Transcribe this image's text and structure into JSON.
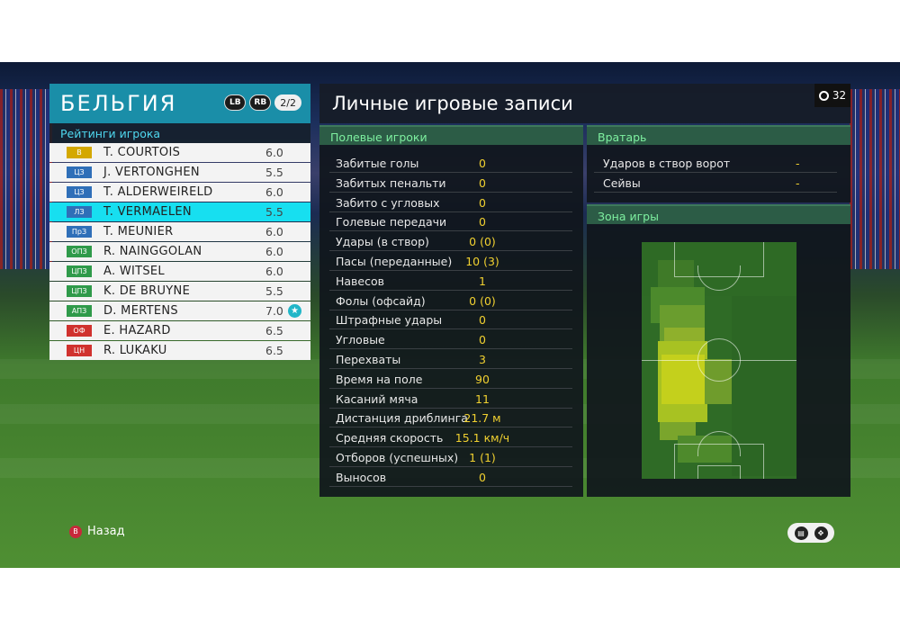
{
  "team": {
    "name": "БЕЛЬГИЯ",
    "lb": "LB",
    "rb": "RB",
    "page": "2/2"
  },
  "ratings_title": "Рейтинги игрока",
  "players": [
    {
      "pos": "В",
      "pos_color": "#d4a800",
      "name": "T. COURTOIS",
      "rating": "6.0"
    },
    {
      "pos": "ЦЗ",
      "pos_color": "#2f6fb8",
      "name": "J. VERTONGHEN",
      "rating": "5.5"
    },
    {
      "pos": "ЦЗ",
      "pos_color": "#2f6fb8",
      "name": "T. ALDERWEIRELD",
      "rating": "6.0"
    },
    {
      "pos": "ЛЗ",
      "pos_color": "#2f6fb8",
      "name": "T. VERMAELEN",
      "rating": "5.5",
      "selected": true
    },
    {
      "pos": "ПрЗ",
      "pos_color": "#2f6fb8",
      "name": "T. MEUNIER",
      "rating": "6.0"
    },
    {
      "pos": "ОПЗ",
      "pos_color": "#2f9a4a",
      "name": "R. NAINGGOLAN",
      "rating": "6.0"
    },
    {
      "pos": "ЦПЗ",
      "pos_color": "#2f9a4a",
      "name": "A. WITSEL",
      "rating": "6.0"
    },
    {
      "pos": "ЦПЗ",
      "pos_color": "#2f9a4a",
      "name": "K. DE BRUYNE",
      "rating": "5.5"
    },
    {
      "pos": "АПЗ",
      "pos_color": "#2f9a4a",
      "name": "D. MERTENS",
      "rating": "7.0",
      "star": true
    },
    {
      "pos": "ОФ",
      "pos_color": "#d0322e",
      "name": "E. HAZARD",
      "rating": "6.5"
    },
    {
      "pos": "ЦН",
      "pos_color": "#d0322e",
      "name": "R. LUKAKU",
      "rating": "6.5"
    }
  ],
  "main": {
    "title": "Личные игровые записи",
    "timer": "32"
  },
  "field_section": {
    "title": "Полевые игроки",
    "stats": [
      {
        "label": "Забитые голы",
        "value": "0"
      },
      {
        "label": "Забитых пенальти",
        "value": "0"
      },
      {
        "label": "Забито с угловых",
        "value": "0"
      },
      {
        "label": "Голевые передачи",
        "value": "0"
      },
      {
        "label": "Удары (в створ)",
        "value": "0 (0)"
      },
      {
        "label": "Пасы (переданные)",
        "value": "10 (3)"
      },
      {
        "label": "Навесов",
        "value": "1"
      },
      {
        "label": "Фолы (офсайд)",
        "value": "0 (0)"
      },
      {
        "label": "Штрафные удары",
        "value": "0"
      },
      {
        "label": "Угловые",
        "value": "0"
      },
      {
        "label": "Перехваты",
        "value": "3"
      },
      {
        "label": "Время на поле",
        "value": "90"
      },
      {
        "label": "Касаний мяча",
        "value": "11"
      },
      {
        "label": "Дистанция дриблинга",
        "value": "21.7 м"
      },
      {
        "label": "Средняя скорость",
        "value": "15.1 км/ч"
      },
      {
        "label": "Отборов (успешных)",
        "value": "1 (1)"
      },
      {
        "label": "Выносов",
        "value": "0"
      }
    ]
  },
  "gk_section": {
    "title": "Вратарь",
    "stats": [
      {
        "label": "Ударов в створ ворот",
        "value": "-"
      },
      {
        "label": "Сейвы",
        "value": "-"
      }
    ]
  },
  "zone_section": {
    "title": "Зона игры"
  },
  "footer": {
    "back_label": "Назад",
    "back_key": "B"
  },
  "colors": {
    "accent": "#17dff0",
    "stat_value": "#f0d030",
    "section_title": "#7ef0a0"
  }
}
